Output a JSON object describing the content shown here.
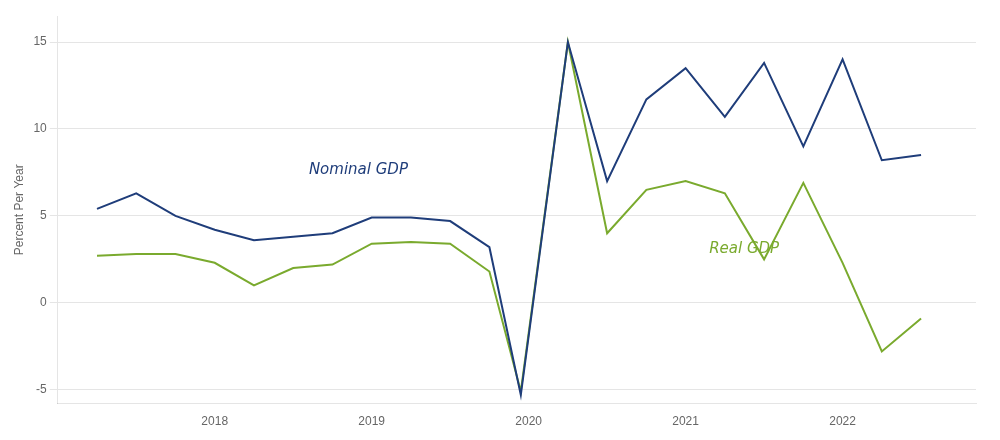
{
  "chart_data": {
    "type": "line",
    "x": [
      2017.25,
      2017.5,
      2017.75,
      2018.0,
      2018.25,
      2018.5,
      2018.75,
      2019.0,
      2019.25,
      2019.5,
      2019.75,
      2019.95,
      2020.25,
      2020.5,
      2020.75,
      2021.0,
      2021.25,
      2021.5,
      2021.75,
      2022.0,
      2022.25,
      2022.5
    ],
    "series": [
      {
        "name": "Nominal GDP",
        "color": "#1f3d7a",
        "values": [
          5.4,
          6.3,
          5.0,
          4.2,
          3.6,
          3.8,
          4.0,
          4.9,
          4.9,
          4.7,
          3.2,
          -5.3,
          15.0,
          7.0,
          11.7,
          13.5,
          10.7,
          13.8,
          9.0,
          14.0,
          8.2,
          8.5
        ]
      },
      {
        "name": "Real GDP",
        "color": "#7aaa2e",
        "values": [
          2.7,
          2.8,
          2.8,
          2.3,
          1.0,
          2.0,
          2.2,
          3.4,
          3.5,
          3.4,
          1.8,
          -5.1,
          15.0,
          4.0,
          6.5,
          7.0,
          6.3,
          2.5,
          6.9,
          2.3,
          -2.8,
          -0.9
        ]
      }
    ],
    "annotations": [
      {
        "text": "Nominal GDP",
        "x": 2018.6,
        "y": 7.2,
        "color": "#1f3d7a"
      },
      {
        "text": "Real GDP",
        "x": 2021.15,
        "y": 3.5,
        "color": "#7aaa2e"
      }
    ],
    "ylabel": "Percent Per Year",
    "xlim": [
      2017.0,
      2022.85
    ],
    "ylim": [
      -5.8,
      16.5
    ],
    "xticks": [
      2018,
      2019,
      2020,
      2021,
      2022
    ],
    "yticks": [
      -5,
      0,
      5,
      10,
      15
    ],
    "grid": "y"
  }
}
